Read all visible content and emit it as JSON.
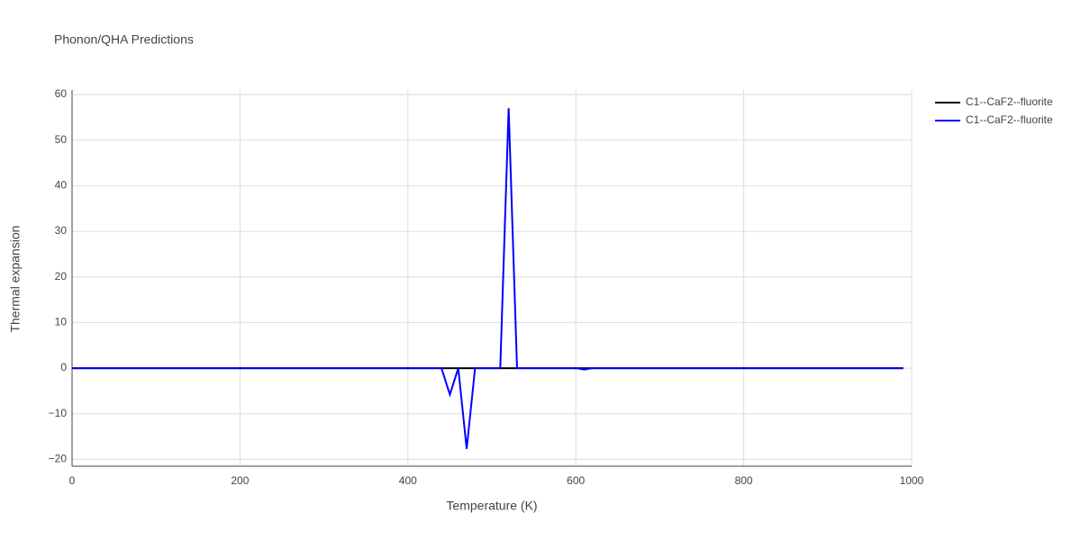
{
  "chart_data": {
    "type": "line",
    "title": "Phonon/QHA Predictions",
    "x_label": "Temperature (K)",
    "y_label": "Thermal expansion",
    "x": [
      0,
      440,
      450,
      460,
      470,
      480,
      510,
      520,
      530,
      600,
      610,
      620,
      990
    ],
    "series": [
      {
        "name": "C1--CaF2--fluorite",
        "color": "#000000",
        "values": [
          0,
          0,
          0,
          0,
          0,
          0,
          0,
          0,
          0,
          0,
          0,
          0,
          0
        ]
      },
      {
        "name": "C1--CaF2--fluorite",
        "color": "#0000ff",
        "values": [
          0,
          0,
          -5.8,
          0,
          -17.7,
          0,
          0,
          57,
          0,
          0,
          -0.3,
          0,
          0
        ]
      }
    ],
    "xlim": [
      0,
      1000
    ],
    "xticks": [
      0,
      200,
      400,
      600,
      800,
      1000
    ],
    "ylim": [
      -21.5,
      61
    ],
    "yticks": [
      {
        "value": -20,
        "label": "−20"
      },
      {
        "value": -10,
        "label": "−10"
      },
      0,
      10,
      20,
      30,
      40,
      50,
      60
    ],
    "grid": true,
    "legend": "right"
  }
}
